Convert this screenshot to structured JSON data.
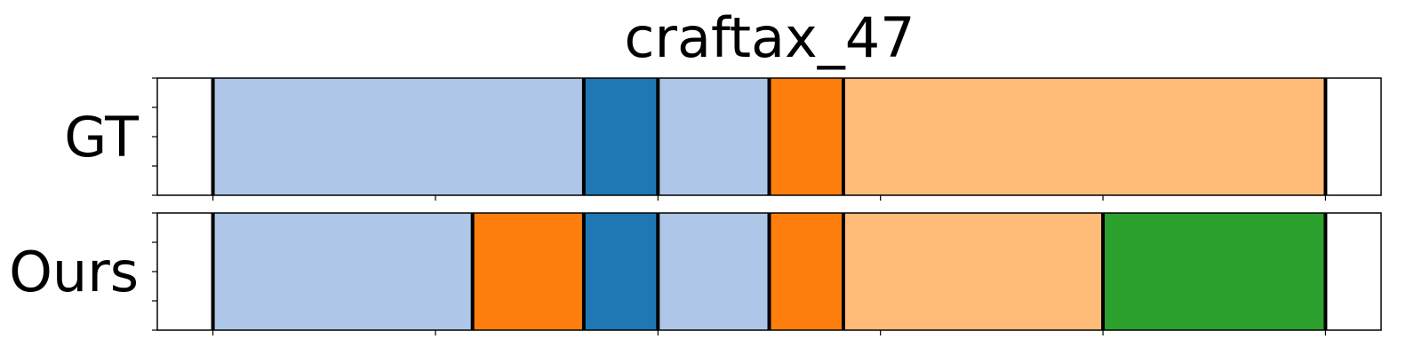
{
  "chart_data": {
    "type": "bar",
    "title": "craftax_47",
    "xlabel": "",
    "ylabel": "",
    "x_range": [
      -15,
      315
    ],
    "x_ticks": [
      0,
      60,
      120,
      180,
      240,
      300
    ],
    "grid": false,
    "rows": [
      {
        "label": "GT",
        "segments": [
          {
            "start": 0,
            "end": 100,
            "color": "#aec7e8"
          },
          {
            "start": 100,
            "end": 120,
            "color": "#1f77b4"
          },
          {
            "start": 120,
            "end": 150,
            "color": "#aec7e8"
          },
          {
            "start": 150,
            "end": 170,
            "color": "#ff7f0e"
          },
          {
            "start": 170,
            "end": 300,
            "color": "#ffbb78"
          }
        ]
      },
      {
        "label": "Ours",
        "segments": [
          {
            "start": 0,
            "end": 70,
            "color": "#aec7e8"
          },
          {
            "start": 70,
            "end": 100,
            "color": "#ff7f0e"
          },
          {
            "start": 100,
            "end": 120,
            "color": "#1f77b4"
          },
          {
            "start": 120,
            "end": 150,
            "color": "#aec7e8"
          },
          {
            "start": 150,
            "end": 170,
            "color": "#ff7f0e"
          },
          {
            "start": 170,
            "end": 240,
            "color": "#ffbb78"
          },
          {
            "start": 240,
            "end": 300,
            "color": "#2ca02c"
          }
        ]
      }
    ]
  }
}
